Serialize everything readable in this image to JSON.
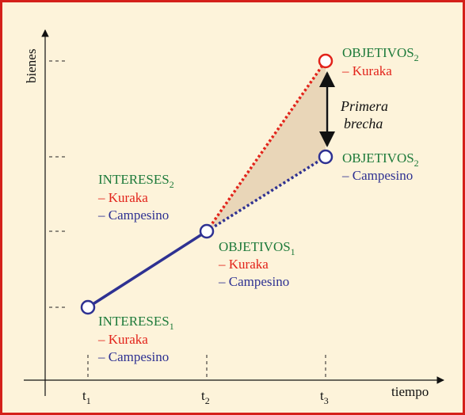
{
  "axes": {
    "y_label": "bienes",
    "x_label": "tiempo",
    "x_ticks": [
      {
        "label": "t",
        "sub": "1"
      },
      {
        "label": "t",
        "sub": "2"
      },
      {
        "label": "t",
        "sub": "3"
      }
    ]
  },
  "nodes": [
    {
      "label": "INTERESES",
      "sub": "1",
      "items": [
        "– Kuraka",
        "– Campesino"
      ]
    },
    {
      "label": "INTERESES",
      "sub": "2",
      "items": [
        "– Kuraka",
        "– Campesino"
      ]
    },
    {
      "label": "OBJETIVOS",
      "sub": "1",
      "items": [
        "– Kuraka",
        "– Campesino"
      ]
    },
    {
      "label": "OBJETIVOS",
      "sub": "2",
      "items": [
        "– Kuraka"
      ]
    },
    {
      "label": "OBJETIVOS",
      "sub": "2",
      "items": [
        "– Campesino"
      ]
    }
  ],
  "gap": {
    "line1": "Primera",
    "line2": "brecha"
  }
}
